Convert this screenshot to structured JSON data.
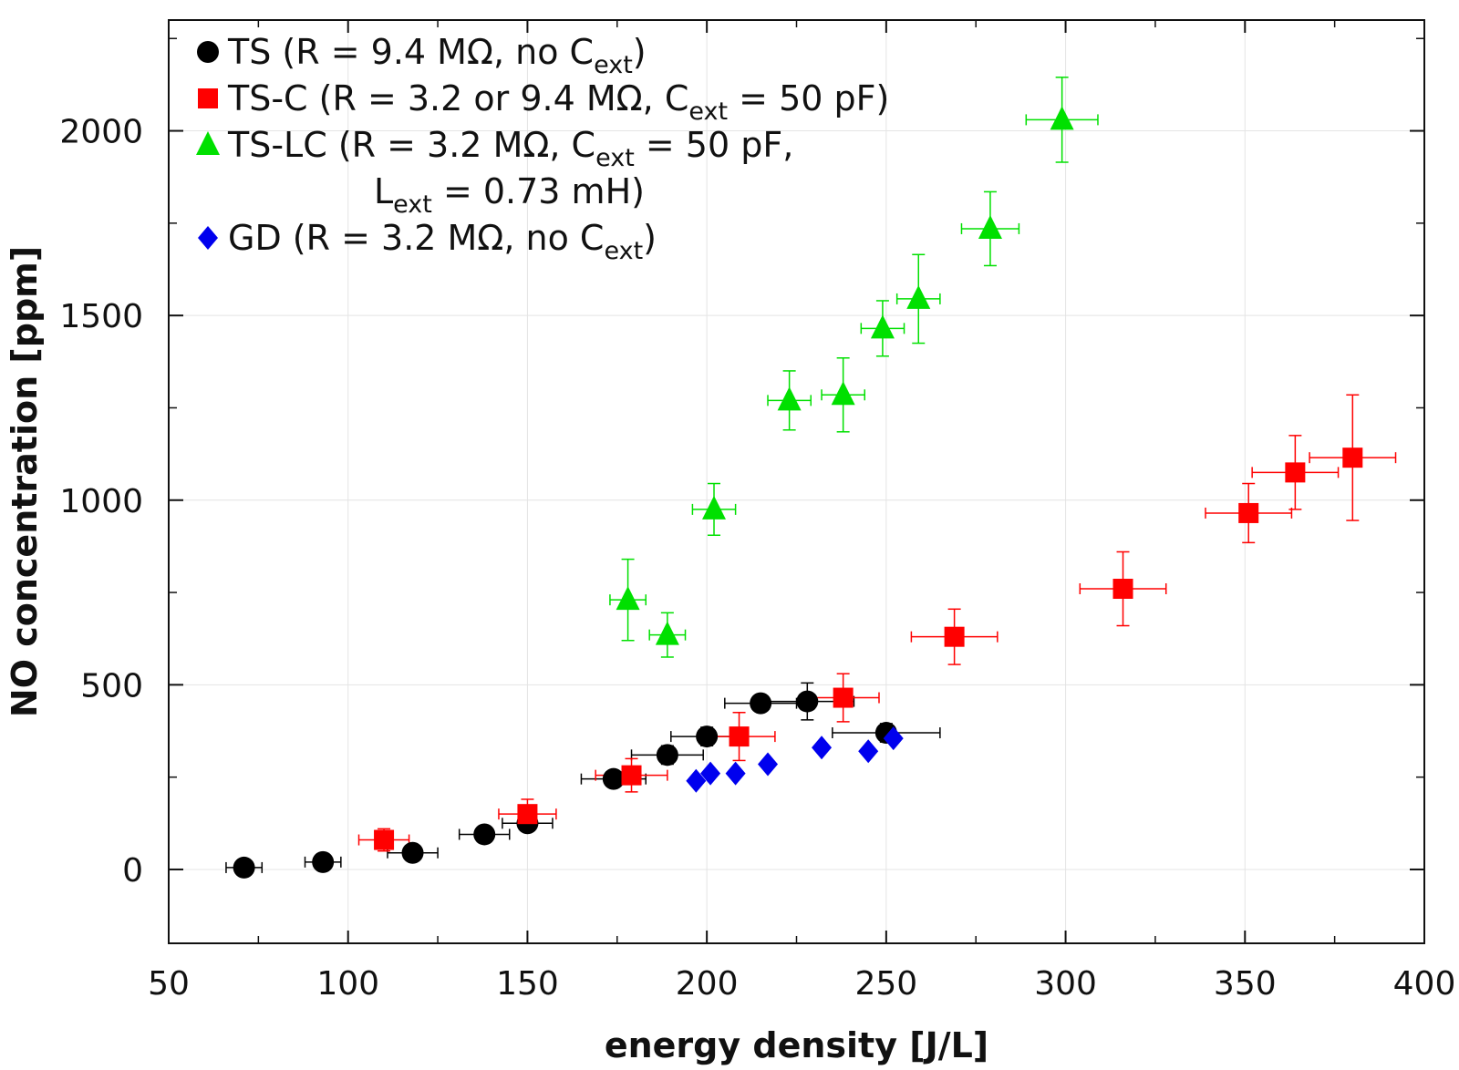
{
  "chart_data": {
    "type": "scatter",
    "xlabel": "energy density [J/L]",
    "ylabel": "NO concentration [ppm]",
    "xlim": [
      50,
      400
    ],
    "ylim": [
      -200,
      2300
    ],
    "xticks": [
      50,
      100,
      150,
      200,
      250,
      300,
      350,
      400
    ],
    "yticks": [
      0,
      500,
      1000,
      1500,
      2000
    ],
    "grid": true,
    "legend_position": "top-left",
    "series": [
      {
        "name": "TS",
        "legend": {
          "pre": "TS (R = 9.4 MΩ, no C",
          "sub": "ext",
          "post": ")"
        },
        "color": "#000000",
        "marker": "circle",
        "points": [
          {
            "x": 71,
            "y": 5,
            "xerr": 5
          },
          {
            "x": 93,
            "y": 20,
            "xerr": 5
          },
          {
            "x": 118,
            "y": 45,
            "xerr": 7
          },
          {
            "x": 138,
            "y": 95,
            "xerr": 7
          },
          {
            "x": 150,
            "y": 125,
            "xerr": 7
          },
          {
            "x": 174,
            "y": 245,
            "xerr": 9
          },
          {
            "x": 189,
            "y": 310,
            "xerr": 10,
            "yerr": 25
          },
          {
            "x": 200,
            "y": 360,
            "xerr": 10,
            "yerr": 25
          },
          {
            "x": 215,
            "y": 450,
            "xerr": 10,
            "yerr": 20
          },
          {
            "x": 228,
            "y": 455,
            "xerr": 13,
            "yerr": 50
          },
          {
            "x": 250,
            "y": 370,
            "xerr": 15,
            "yerr": 25
          }
        ]
      },
      {
        "name": "TS-C",
        "legend": {
          "pre": "TS-C (R = 3.2 or 9.4 MΩ, C",
          "sub": "ext",
          "post": " = 50 pF)"
        },
        "color": "#ff0000",
        "marker": "square",
        "points": [
          {
            "x": 110,
            "y": 80,
            "xerr": 7,
            "yerr": 30
          },
          {
            "x": 150,
            "y": 150,
            "xerr": 8,
            "yerr": 40
          },
          {
            "x": 179,
            "y": 255,
            "xerr": 10,
            "yerr": 45
          },
          {
            "x": 209,
            "y": 360,
            "xerr": 10,
            "yerr": 65
          },
          {
            "x": 238,
            "y": 465,
            "xerr": 10,
            "yerr": 65
          },
          {
            "x": 269,
            "y": 630,
            "xerr": 12,
            "yerr": 75
          },
          {
            "x": 316,
            "y": 760,
            "xerr": 12,
            "yerr": 100
          },
          {
            "x": 351,
            "y": 965,
            "xerr": 12,
            "yerr": 80
          },
          {
            "x": 364,
            "y": 1075,
            "xerr": 12,
            "yerr": 100
          },
          {
            "x": 380,
            "y": 1115,
            "xerr": 12,
            "yerr": 170
          }
        ]
      },
      {
        "name": "TS-LC",
        "legend": {
          "pre": "TS-LC (R = 3.2 MΩ, C",
          "sub": "ext",
          "post": " = 50 pF,",
          "line2_pre": "L",
          "line2_sub": "ext",
          "line2_post": " = 0.73 mH)"
        },
        "color": "#00e000",
        "marker": "triangle",
        "points": [
          {
            "x": 178,
            "y": 730,
            "xerr": 5,
            "yerr": 110
          },
          {
            "x": 189,
            "y": 635,
            "xerr": 5,
            "yerr": 60
          },
          {
            "x": 202,
            "y": 975,
            "xerr": 6,
            "yerr": 70
          },
          {
            "x": 223,
            "y": 1270,
            "xerr": 6,
            "yerr": 80
          },
          {
            "x": 238,
            "y": 1285,
            "xerr": 6,
            "yerr": 100
          },
          {
            "x": 249,
            "y": 1465,
            "xerr": 6,
            "yerr": 75
          },
          {
            "x": 259,
            "y": 1545,
            "xerr": 6,
            "yerr": 120
          },
          {
            "x": 279,
            "y": 1735,
            "xerr": 8,
            "yerr": 100
          },
          {
            "x": 299,
            "y": 2030,
            "xerr": 10,
            "yerr": 115
          }
        ]
      },
      {
        "name": "GD",
        "legend": {
          "pre": "GD (R = 3.2 MΩ, no C",
          "sub": "ext",
          "post": ")"
        },
        "color": "#0000ee",
        "marker": "diamond",
        "points": [
          {
            "x": 197,
            "y": 240
          },
          {
            "x": 201,
            "y": 260
          },
          {
            "x": 208,
            "y": 260
          },
          {
            "x": 217,
            "y": 285
          },
          {
            "x": 232,
            "y": 330
          },
          {
            "x": 245,
            "y": 320
          },
          {
            "x": 252,
            "y": 355
          }
        ]
      }
    ]
  }
}
